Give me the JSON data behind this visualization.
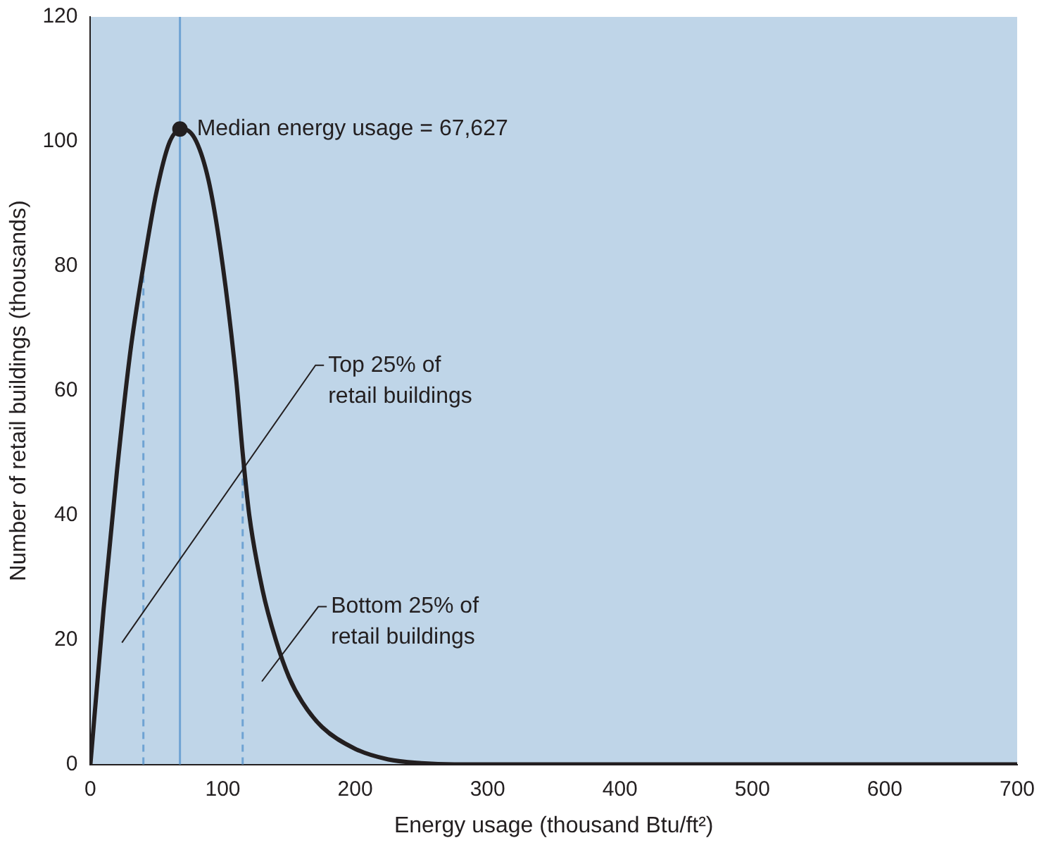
{
  "chart_data": {
    "type": "line",
    "xlabel": "Energy usage (thousand Btu/ft²)",
    "ylabel": "Number of retail buildings (thousands)",
    "xlim": [
      0,
      700
    ],
    "xticks": [
      0,
      100,
      200,
      300,
      400,
      500,
      600,
      700
    ],
    "ylim": [
      0,
      120
    ],
    "yticks": [
      0,
      20,
      40,
      60,
      80,
      100,
      120
    ],
    "grid": false,
    "legend": false,
    "marker": "none",
    "line_style": "solid",
    "series": [
      {
        "type": "line",
        "color": "#231f20",
        "x": [
          0,
          10,
          20,
          30,
          40,
          50,
          60,
          70,
          80,
          90,
          100,
          110,
          115,
          120,
          130,
          140,
          150,
          160,
          175,
          200,
          225,
          250,
          275,
          700
        ],
        "values": [
          0,
          25,
          47,
          66,
          80,
          92,
          100,
          102,
          100,
          93,
          80,
          62,
          50,
          40,
          28,
          20,
          14,
          10,
          6,
          2.5,
          0.8,
          0.2,
          0,
          0
        ]
      },
      {
        "type": "scatter",
        "color": "#231f20",
        "marker": "circle",
        "x": [
          67.627
        ],
        "values": [
          102
        ]
      }
    ],
    "ref_lines": [
      {
        "axis": "x",
        "value": 67.627,
        "color": "#6fa3d3",
        "line_style": "solid"
      },
      {
        "axis": "x",
        "value": 40,
        "color": "#6fa3d3",
        "line_style": "dashed"
      },
      {
        "axis": "x",
        "value": 115,
        "color": "#6fa3d3",
        "line_style": "dashed"
      }
    ],
    "annotations": [
      {
        "text": "Median energy usage = 67,627",
        "x": 67.627,
        "y": 102
      },
      "Top 25% of\nretail buildings",
      "Bottom 25% of\nretail buildings"
    ]
  }
}
